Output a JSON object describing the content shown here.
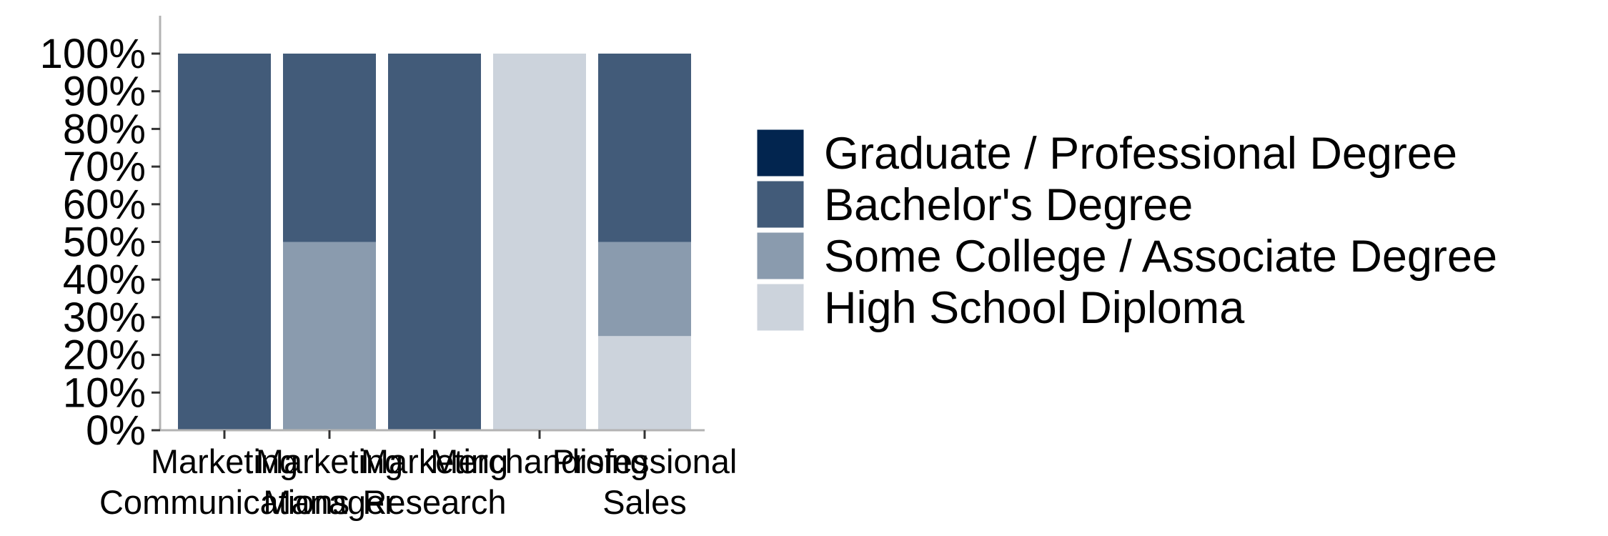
{
  "chart_data": {
    "type": "bar",
    "stacked": true,
    "categories": [
      [
        "Marketing",
        "Communications"
      ],
      [
        "Marketing",
        "Manager"
      ],
      [
        "Marketing",
        "Research"
      ],
      [
        "Merchandising"
      ],
      [
        "Professional",
        "Sales"
      ]
    ],
    "series": [
      {
        "name": "High School Diploma",
        "color": "#CCD3DC",
        "values": [
          0,
          0,
          0,
          100,
          25
        ]
      },
      {
        "name": "Some College / Associate Degree",
        "color": "#8A9BAE",
        "values": [
          0,
          50,
          0,
          0,
          25
        ]
      },
      {
        "name": "Bachelor's Degree",
        "color": "#425B79",
        "values": [
          100,
          50,
          100,
          0,
          50
        ]
      },
      {
        "name": "Graduate / Professional Degree",
        "color": "#02254F",
        "values": [
          0,
          0,
          0,
          0,
          0
        ]
      }
    ],
    "legend_order": [
      "Graduate / Professional Degree",
      "Bachelor's Degree",
      "Some College / Associate Degree",
      "High School Diploma"
    ],
    "y_ticks": [
      "0%",
      "10%",
      "20%",
      "30%",
      "40%",
      "50%",
      "60%",
      "70%",
      "80%",
      "90%",
      "100%"
    ],
    "ylim": [
      0,
      100
    ],
    "grid": false,
    "legend_position": "right",
    "title": "",
    "xlabel": "",
    "ylabel": ""
  }
}
